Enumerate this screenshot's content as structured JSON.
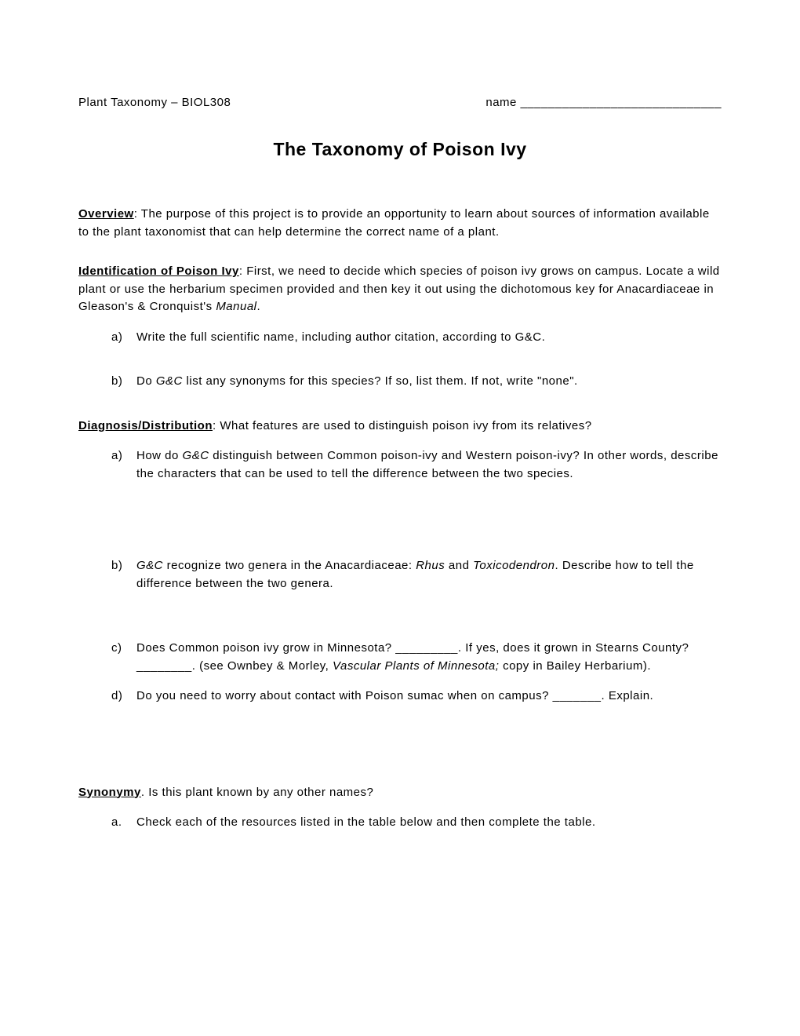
{
  "header": {
    "left": "Plant Taxonomy – BIOL308",
    "rightLabel": "name",
    "rightBlank": "_____________________________"
  },
  "title": "The Taxonomy of Poison Ivy",
  "overview": {
    "label": "Overview",
    "text": ":  The purpose of this project is to provide an opportunity to learn about sources of information available to the plant taxonomist that can help determine the correct name of a plant."
  },
  "identification": {
    "label": "Identification of Poison Ivy",
    "text1": ":  First, we need to decide which species of poison ivy grows on campus.  Locate a wild plant or use the herbarium specimen provided and then key it out using the dichotomous key for Anacardiaceae in Gleason's & Cronquist's ",
    "manualItalic": "Manual",
    "text2": ".",
    "items": {
      "a": {
        "marker": "a)",
        "text": "Write the full scientific name, including author citation, according to G&C."
      },
      "b": {
        "marker": "b)",
        "text1": "Do ",
        "italic": "G&C",
        "text2": " list any synonyms for this species?  If so, list them.  If not, write \"none\"."
      }
    }
  },
  "diagnosis": {
    "label": "Diagnosis/Distribution",
    "text": ":   What features are used to distinguish poison ivy from its relatives?",
    "items": {
      "a": {
        "marker": "a)",
        "text1": "How do ",
        "italic": "G&C",
        "text2": " distinguish between Common poison-ivy and Western poison-ivy?  In other words, describe the characters that can be used to tell the difference between the two species."
      },
      "b": {
        "marker": "b)",
        "italic1": "G&C",
        "text1": " recognize two genera in the Anacardiaceae: ",
        "italic2": "Rhus",
        "text2": " and ",
        "italic3": "Toxicodendron",
        "text3": ".  Describe how to tell the difference between the two genera."
      },
      "c": {
        "marker": "c)",
        "text1": "Does Common poison ivy grow in Minnesota? _________.  If yes, does it grown in Stearns County? ________.  (see Ownbey & Morley, ",
        "italic": "Vascular Plants of Minnesota;",
        "text2": " copy in Bailey Herbarium)."
      },
      "d": {
        "marker": "d)",
        "text": "Do you need to worry about contact with Poison sumac when on campus? _______.  Explain."
      }
    }
  },
  "synonymy": {
    "label": "Synonymy",
    "text": ". Is this plant known by any other names?",
    "items": {
      "a": {
        "marker": "a.",
        "text": "Check each of the resources listed in the table below and then complete the table."
      }
    }
  },
  "colors": {
    "background": "#ffffff",
    "text": "#000000"
  },
  "typography": {
    "bodyFontSize": 15,
    "titleFontSize": 23
  }
}
